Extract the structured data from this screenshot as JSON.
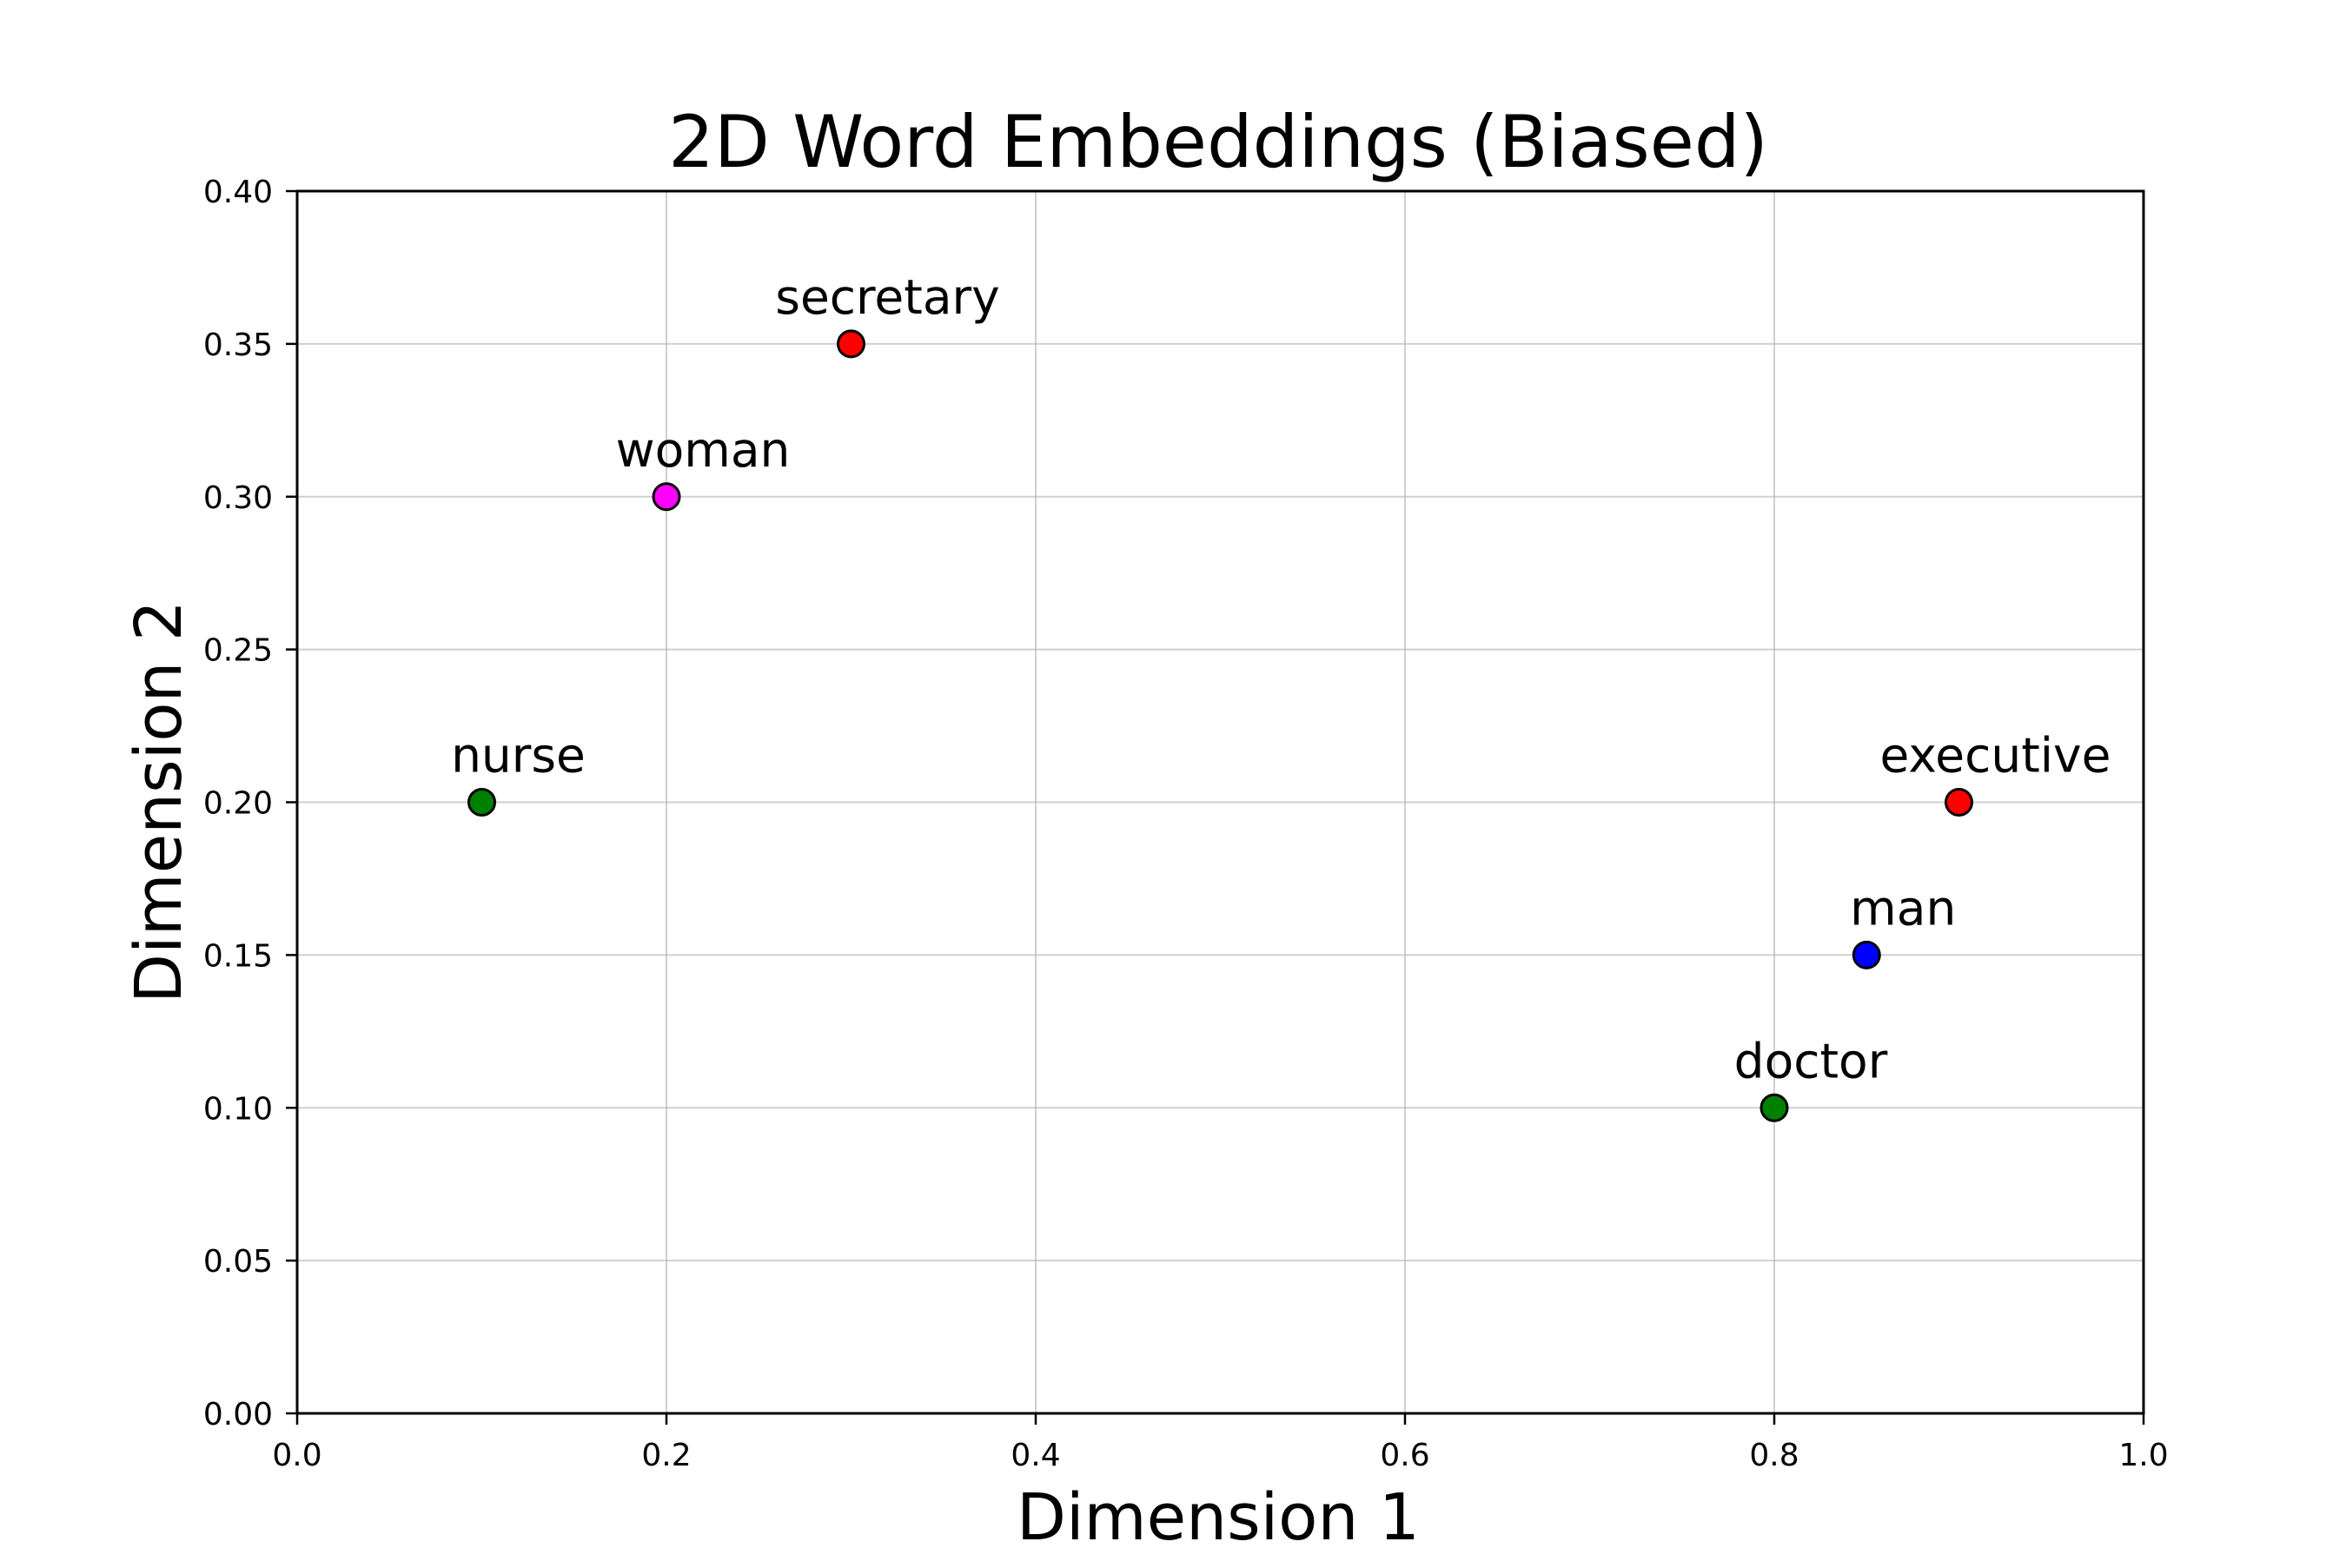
{
  "chart_data": {
    "type": "scatter",
    "title": "2D Word Embeddings (Biased)",
    "xlabel": "Dimension 1",
    "ylabel": "Dimension 2",
    "xlim": [
      0.0,
      1.0
    ],
    "ylim": [
      0.0,
      0.4
    ],
    "x_ticks": [
      "0.0",
      "0.2",
      "0.4",
      "0.6",
      "0.8",
      "1.0"
    ],
    "y_ticks": [
      "0.00",
      "0.05",
      "0.10",
      "0.15",
      "0.20",
      "0.25",
      "0.30",
      "0.35",
      "0.40"
    ],
    "grid": true,
    "points": [
      {
        "label": "man",
        "x": 0.85,
        "y": 0.15,
        "color": "#0000ff"
      },
      {
        "label": "woman",
        "x": 0.2,
        "y": 0.3,
        "color": "#ff00ff"
      },
      {
        "label": "doctor",
        "x": 0.8,
        "y": 0.1,
        "color": "#008000"
      },
      {
        "label": "nurse",
        "x": 0.1,
        "y": 0.2,
        "color": "#008000"
      },
      {
        "label": "executive",
        "x": 0.9,
        "y": 0.2,
        "color": "#ff0000"
      },
      {
        "label": "secretary",
        "x": 0.3,
        "y": 0.35,
        "color": "#ff0000"
      }
    ]
  }
}
